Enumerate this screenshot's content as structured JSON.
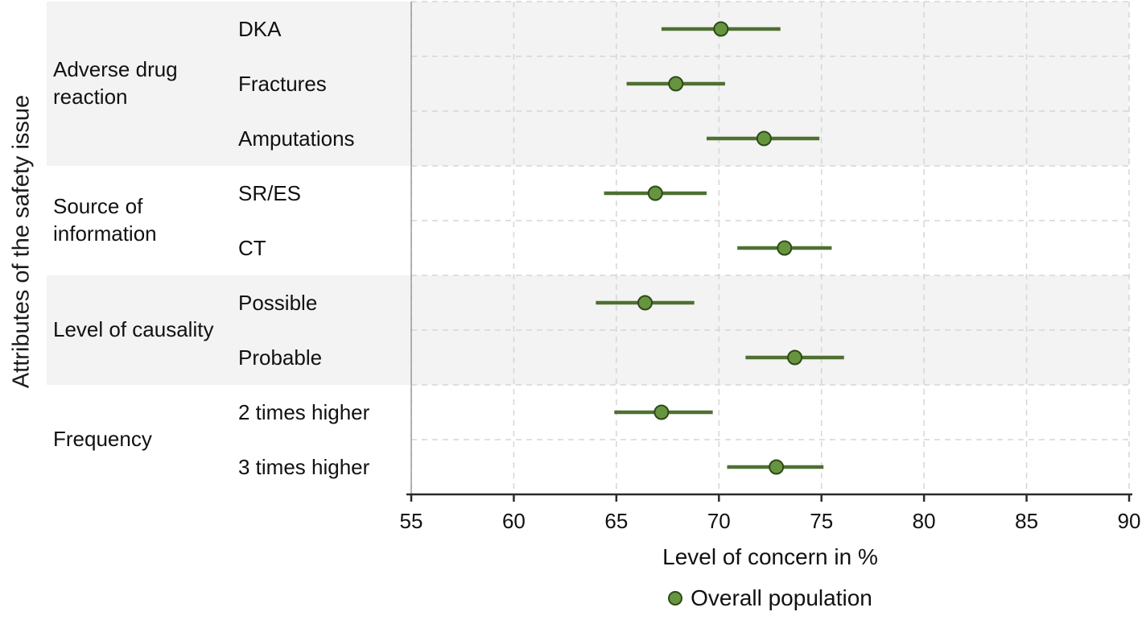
{
  "chart_data": {
    "type": "scatter",
    "subtype": "forest-plot-dot-with-horizontal-ci",
    "title": "",
    "ylabel": "Attributes of the safety issue",
    "xlabel": "Level of concern in %",
    "xlim": [
      55,
      90
    ],
    "xticks": [
      55,
      60,
      65,
      70,
      75,
      80,
      85,
      90
    ],
    "grid": "dashed",
    "legend_position": "bottom-center",
    "legend": [
      {
        "label": "Overall population",
        "marker": "filled-circle",
        "color": "#67953f"
      }
    ],
    "groups": [
      {
        "label": "Adverse drug reaction",
        "shaded": true,
        "items": [
          {
            "label": "DKA",
            "value": 70.1,
            "ci_low": 67.2,
            "ci_high": 73.0
          },
          {
            "label": "Fractures",
            "value": 67.9,
            "ci_low": 65.5,
            "ci_high": 70.3
          },
          {
            "label": "Amputations",
            "value": 72.2,
            "ci_low": 69.4,
            "ci_high": 74.9
          }
        ]
      },
      {
        "label": "Source of information",
        "shaded": false,
        "items": [
          {
            "label": "SR/ES",
            "value": 66.9,
            "ci_low": 64.4,
            "ci_high": 69.4
          },
          {
            "label": "CT",
            "value": 73.2,
            "ci_low": 70.9,
            "ci_high": 75.5
          }
        ]
      },
      {
        "label": "Level of causality",
        "shaded": true,
        "items": [
          {
            "label": "Possible",
            "value": 66.4,
            "ci_low": 64.0,
            "ci_high": 68.8
          },
          {
            "label": "Probable",
            "value": 73.7,
            "ci_low": 71.3,
            "ci_high": 76.1
          }
        ]
      },
      {
        "label": "Frequency",
        "shaded": false,
        "items": [
          {
            "label": "2 times higher",
            "value": 67.2,
            "ci_low": 64.9,
            "ci_high": 69.7
          },
          {
            "label": "3 times higher",
            "value": 72.8,
            "ci_low": 70.4,
            "ci_high": 75.1
          }
        ]
      }
    ],
    "colors": {
      "ci_line": "#4e7031",
      "dot_fill": "#67953f",
      "dot_stroke": "#2d4a17",
      "band": "#f3f3f3",
      "grid": "#d6d6d6",
      "axis": "#2a2a2a",
      "left_border": "#9a9a9a",
      "text": "#111111"
    }
  }
}
